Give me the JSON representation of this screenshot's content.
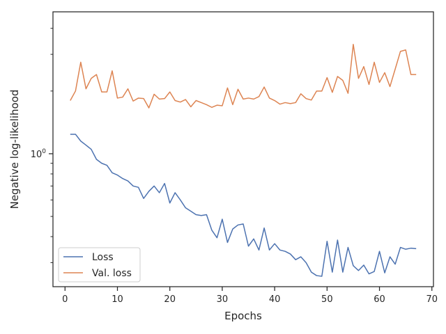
{
  "chart_data": {
    "type": "line",
    "xlabel": "Epochs",
    "ylabel": "Negative log-likelihood",
    "x_ticks": [
      0,
      10,
      20,
      30,
      40,
      50,
      60,
      70
    ],
    "y_tick_labels": [
      {
        "value": 1.0,
        "label": "10^0"
      }
    ],
    "y_scale": "log",
    "xlim": [
      -2.3,
      70.3
    ],
    "ylim": [
      0.23,
      4.8
    ],
    "grid": false,
    "legend": {
      "position": "lower-left"
    },
    "x": [
      1,
      2,
      3,
      4,
      5,
      6,
      7,
      8,
      9,
      10,
      11,
      12,
      13,
      14,
      15,
      16,
      17,
      18,
      19,
      20,
      21,
      22,
      23,
      24,
      25,
      26,
      27,
      28,
      29,
      30,
      31,
      32,
      33,
      34,
      35,
      36,
      37,
      38,
      39,
      40,
      41,
      42,
      43,
      44,
      45,
      46,
      47,
      48,
      49,
      50,
      51,
      52,
      53,
      54,
      55,
      56,
      57,
      58,
      59,
      60,
      61,
      62,
      63,
      64,
      65,
      66,
      67
    ],
    "series": [
      {
        "name": "Loss",
        "color": "#4c72b0",
        "values": [
          1.24,
          1.24,
          1.15,
          1.1,
          1.05,
          0.94,
          0.9,
          0.88,
          0.81,
          0.79,
          0.76,
          0.74,
          0.7,
          0.69,
          0.61,
          0.66,
          0.7,
          0.65,
          0.72,
          0.58,
          0.65,
          0.6,
          0.55,
          0.53,
          0.51,
          0.505,
          0.51,
          0.43,
          0.395,
          0.485,
          0.375,
          0.435,
          0.455,
          0.46,
          0.36,
          0.39,
          0.345,
          0.44,
          0.345,
          0.37,
          0.345,
          0.34,
          0.33,
          0.31,
          0.32,
          0.3,
          0.27,
          0.26,
          0.258,
          0.38,
          0.27,
          0.385,
          0.27,
          0.355,
          0.29,
          0.275,
          0.292,
          0.265,
          0.272,
          0.34,
          0.268,
          0.32,
          0.295,
          0.355,
          0.348,
          0.352,
          0.35
        ]
      },
      {
        "name": "Val. loss",
        "color": "#dd8452",
        "values": [
          1.8,
          2.0,
          2.75,
          2.05,
          2.3,
          2.4,
          1.98,
          1.98,
          2.5,
          1.85,
          1.87,
          2.05,
          1.79,
          1.85,
          1.84,
          1.66,
          1.93,
          1.83,
          1.84,
          1.98,
          1.8,
          1.77,
          1.82,
          1.68,
          1.8,
          1.76,
          1.72,
          1.67,
          1.71,
          1.7,
          2.07,
          1.72,
          2.04,
          1.83,
          1.85,
          1.83,
          1.88,
          2.09,
          1.85,
          1.8,
          1.73,
          1.76,
          1.74,
          1.76,
          1.94,
          1.84,
          1.81,
          2.0,
          2.0,
          2.32,
          1.97,
          2.35,
          2.25,
          1.95,
          3.35,
          2.3,
          2.62,
          2.15,
          2.75,
          2.2,
          2.45,
          2.1,
          2.55,
          3.1,
          3.15,
          2.4,
          2.4
        ]
      }
    ]
  }
}
